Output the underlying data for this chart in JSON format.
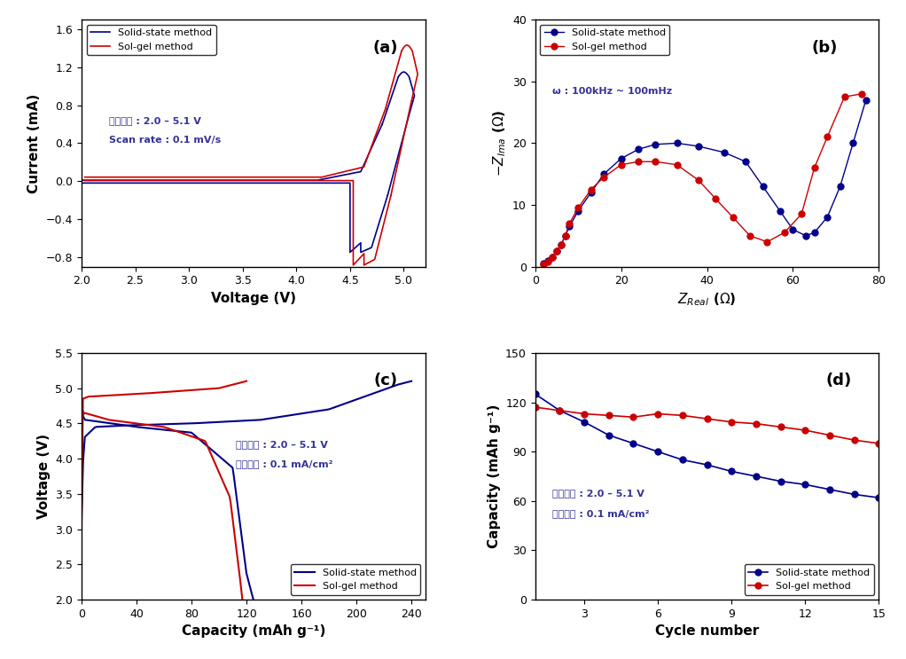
{
  "panel_a": {
    "title": "(a)",
    "xlabel": "Voltage (V)",
    "ylabel": "Current (mA)",
    "xlim": [
      2.0,
      5.2
    ],
    "ylim": [
      -0.9,
      1.7
    ],
    "yticks": [
      -0.8,
      -0.4,
      0.0,
      0.4,
      0.8,
      1.2,
      1.6
    ],
    "xticks": [
      2.0,
      2.5,
      3.0,
      3.5,
      4.0,
      4.5,
      5.0
    ],
    "annotation1": "전압범위 : 2.0 – 5.1 V",
    "annotation2": "Scan rate : 0.1 mV/s",
    "legend_labels": [
      "Solid-state method",
      "Sol-gel method"
    ],
    "solid_color": "#00008B",
    "solgel_color": "#CC0000"
  },
  "panel_b": {
    "title": "(b)",
    "xlabel": "Z_Real (Ω)",
    "ylabel": "-Z_Ima (Ω)",
    "xlim": [
      0,
      80
    ],
    "ylim": [
      0,
      40
    ],
    "xticks": [
      0,
      20,
      40,
      60,
      80
    ],
    "yticks": [
      0,
      10,
      20,
      30,
      40
    ],
    "annotation1": "ω : 100kHz ~ 100mHz",
    "legend_labels": [
      "Solid-state method",
      "Sol-gel method"
    ],
    "solid_color": "#00008B",
    "solgel_color": "#CC0000",
    "solid_x": [
      2,
      3,
      4,
      5,
      6,
      7,
      8,
      10,
      13,
      16,
      20,
      24,
      28,
      33,
      38,
      44,
      49,
      53,
      57,
      60,
      63,
      65,
      68,
      71,
      74,
      77
    ],
    "solid_y": [
      0.5,
      1.0,
      1.5,
      2.5,
      3.5,
      5.0,
      6.5,
      9.0,
      12.0,
      15.0,
      17.5,
      19.0,
      19.8,
      20.0,
      19.5,
      18.5,
      17.0,
      13.0,
      9.0,
      6.0,
      5.0,
      5.5,
      8.0,
      13.0,
      20.0,
      27.0
    ],
    "solgel_x": [
      2,
      3,
      4,
      5,
      6,
      7,
      8,
      10,
      13,
      16,
      20,
      24,
      28,
      33,
      38,
      42,
      46,
      50,
      54,
      58,
      62,
      65,
      68,
      72,
      76
    ],
    "solgel_y": [
      0.3,
      0.8,
      1.5,
      2.5,
      3.5,
      5.0,
      7.0,
      9.5,
      12.5,
      14.5,
      16.5,
      17.0,
      17.0,
      16.5,
      14.0,
      11.0,
      8.0,
      5.0,
      4.0,
      5.5,
      8.5,
      16.0,
      21.0,
      27.5,
      28.0
    ]
  },
  "panel_c": {
    "title": "(c)",
    "xlabel": "Capacity (mAh g⁻¹)",
    "ylabel": "Voltage (V)",
    "xlim": [
      0,
      250
    ],
    "ylim": [
      2.0,
      5.5
    ],
    "xticks": [
      0,
      40,
      80,
      120,
      160,
      200,
      240
    ],
    "yticks": [
      2.0,
      2.5,
      3.0,
      3.5,
      4.0,
      4.5,
      5.0,
      5.5
    ],
    "annotation1": "전압범위 : 2.0 – 5.1 V",
    "annotation2": "전류밀도 : 0.1 mA/cm²",
    "legend_labels": [
      "Solid-state method",
      "Sol-gel method"
    ],
    "solid_color": "#00008B",
    "solgel_color": "#CC0000"
  },
  "panel_d": {
    "title": "(d)",
    "xlabel": "Cycle number",
    "ylabel": "Capacity (mAh g⁻¹)",
    "xlim": [
      1,
      15
    ],
    "ylim": [
      0,
      150
    ],
    "xticks": [
      3,
      6,
      9,
      12,
      15
    ],
    "yticks": [
      0,
      30,
      60,
      90,
      120,
      150
    ],
    "annotation1": "전압범위 : 2.0 – 5.1 V",
    "annotation2": "전류밀도 : 0.1 mA/cm²",
    "legend_labels": [
      "Solid-state method",
      "Sol-gel method"
    ],
    "solid_color": "#00008B",
    "solgel_color": "#CC0000",
    "solid_cycles": [
      1,
      2,
      3,
      4,
      5,
      6,
      7,
      8,
      9,
      10,
      11,
      12,
      13,
      14,
      15
    ],
    "solid_cap": [
      125,
      115,
      108,
      100,
      95,
      90,
      85,
      82,
      78,
      75,
      72,
      70,
      67,
      64,
      62
    ],
    "solgel_cycles": [
      1,
      2,
      3,
      4,
      5,
      6,
      7,
      8,
      9,
      10,
      11,
      12,
      13,
      14,
      15
    ],
    "solgel_cap": [
      117,
      115,
      113,
      112,
      111,
      113,
      112,
      110,
      108,
      107,
      105,
      103,
      100,
      97,
      95
    ]
  }
}
